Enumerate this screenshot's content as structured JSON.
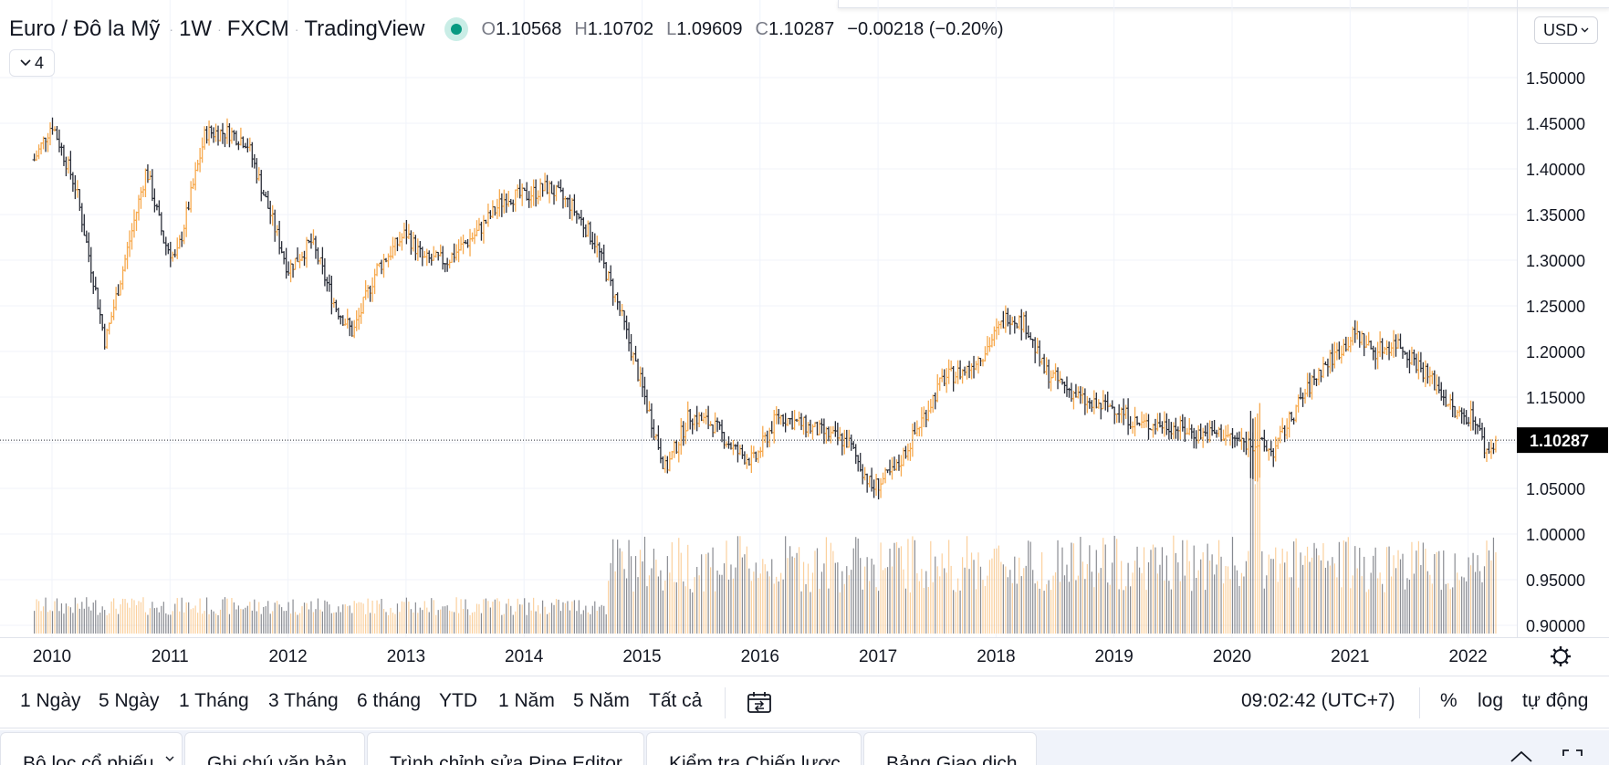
{
  "legend": {
    "symbol": "Euro / Đô la Mỹ",
    "interval": "1W",
    "exchange": "FXCM",
    "source": "TradingView",
    "open_key": "O",
    "open": "1.10568",
    "high_key": "H",
    "high": "1.10702",
    "low_key": "L",
    "low": "1.09609",
    "close_key": "C",
    "close": "1.10287",
    "change": "−0.00218 (−0.20%)"
  },
  "collapse_count": "4",
  "currency": "USD",
  "last_price_label": "1.10287",
  "colors": {
    "up": "#f7a94d",
    "down": "#2a2e39",
    "last_price_bg": "#000000",
    "status": "#089981"
  },
  "chart_data": {
    "type": "ohlc",
    "ylim": [
      0.88,
      1.53
    ],
    "y_ticks": [
      "1.50000",
      "1.45000",
      "1.40000",
      "1.35000",
      "1.30000",
      "1.25000",
      "1.20000",
      "1.15000",
      "1.10000",
      "1.05000",
      "1.00000",
      "0.95000",
      "0.90000"
    ],
    "x_ticks": [
      "2010",
      "2011",
      "2012",
      "2013",
      "2014",
      "2015",
      "2016",
      "2017",
      "2018",
      "2019",
      "2020",
      "2021",
      "2022"
    ],
    "xlim": [
      2009.85,
      2022.35
    ],
    "last_close": 1.10287,
    "anchors": [
      [
        2009.85,
        1.41
      ],
      [
        2010.0,
        1.45
      ],
      [
        2010.2,
        1.38
      ],
      [
        2010.35,
        1.28
      ],
      [
        2010.45,
        1.21
      ],
      [
        2010.6,
        1.29
      ],
      [
        2010.8,
        1.4
      ],
      [
        2010.95,
        1.32
      ],
      [
        2011.05,
        1.3
      ],
      [
        2011.3,
        1.44
      ],
      [
        2011.5,
        1.44
      ],
      [
        2011.65,
        1.43
      ],
      [
        2011.8,
        1.37
      ],
      [
        2012.0,
        1.29
      ],
      [
        2012.2,
        1.32
      ],
      [
        2012.4,
        1.25
      ],
      [
        2012.55,
        1.22
      ],
      [
        2012.75,
        1.29
      ],
      [
        2013.0,
        1.33
      ],
      [
        2013.15,
        1.3
      ],
      [
        2013.35,
        1.3
      ],
      [
        2013.6,
        1.33
      ],
      [
        2013.85,
        1.37
      ],
      [
        2014.0,
        1.37
      ],
      [
        2014.2,
        1.38
      ],
      [
        2014.4,
        1.36
      ],
      [
        2014.6,
        1.32
      ],
      [
        2014.8,
        1.25
      ],
      [
        2015.0,
        1.16
      ],
      [
        2015.2,
        1.07
      ],
      [
        2015.4,
        1.13
      ],
      [
        2015.6,
        1.12
      ],
      [
        2015.8,
        1.09
      ],
      [
        2015.95,
        1.08
      ],
      [
        2016.15,
        1.13
      ],
      [
        2016.35,
        1.12
      ],
      [
        2016.55,
        1.11
      ],
      [
        2016.75,
        1.1
      ],
      [
        2016.95,
        1.05
      ],
      [
        2017.15,
        1.07
      ],
      [
        2017.35,
        1.12
      ],
      [
        2017.55,
        1.17
      ],
      [
        2017.75,
        1.18
      ],
      [
        2017.9,
        1.2
      ],
      [
        2018.1,
        1.24
      ],
      [
        2018.25,
        1.23
      ],
      [
        2018.4,
        1.18
      ],
      [
        2018.6,
        1.16
      ],
      [
        2018.8,
        1.14
      ],
      [
        2019.0,
        1.14
      ],
      [
        2019.2,
        1.12
      ],
      [
        2019.45,
        1.12
      ],
      [
        2019.7,
        1.11
      ],
      [
        2019.9,
        1.11
      ],
      [
        2020.1,
        1.1
      ],
      [
        2020.2,
        1.1
      ],
      [
        2020.35,
        1.09
      ],
      [
        2020.55,
        1.14
      ],
      [
        2020.75,
        1.18
      ],
      [
        2020.9,
        1.2
      ],
      [
        2021.05,
        1.22
      ],
      [
        2021.2,
        1.2
      ],
      [
        2021.4,
        1.21
      ],
      [
        2021.55,
        1.19
      ],
      [
        2021.75,
        1.16
      ],
      [
        2021.9,
        1.13
      ],
      [
        2022.05,
        1.13
      ],
      [
        2022.15,
        1.09
      ],
      [
        2022.25,
        1.1
      ]
    ]
  },
  "range_buttons": [
    "1 Ngày",
    "5 Ngày",
    "1 Tháng",
    "3 Tháng",
    "6 tháng",
    "YTD",
    "1 Năm",
    "5 Năm",
    "Tất cả"
  ],
  "clock": "09:02:42 (UTC+7)",
  "scale_toggles": [
    "%",
    "log",
    "tự động"
  ],
  "bottom_tabs": [
    "Bộ lọc cổ phiếu",
    "Ghi chú văn bản",
    "Trình chỉnh sửa Pine Editor",
    "Kiểm tra Chiến lược",
    "Bảng Giao dịch"
  ]
}
